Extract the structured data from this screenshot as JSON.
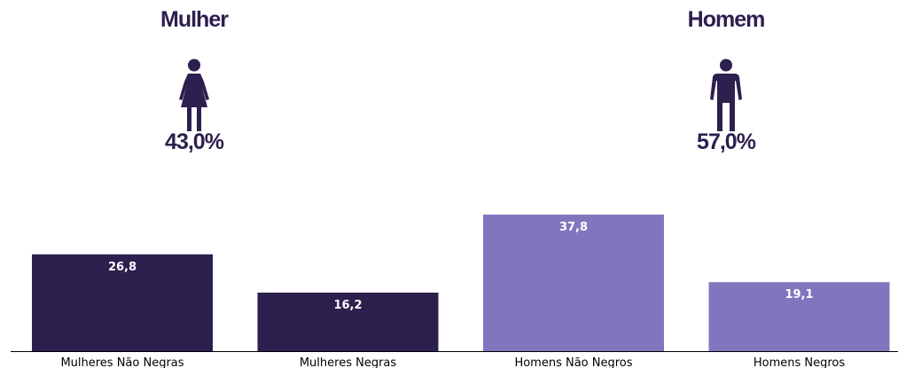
{
  "header": {
    "female": {
      "title": "Mulher",
      "percent": "43,0%",
      "icon": "female-person-icon"
    },
    "male": {
      "title": "Homem",
      "percent": "57,0%",
      "icon": "male-person-icon"
    }
  },
  "colors": {
    "title_text": "#2d1f4e",
    "female_bar": "#2d1f4e",
    "male_bar": "#8176bd",
    "bar_label": "#ffffff",
    "axis": "#000000"
  },
  "chart_data": {
    "type": "bar",
    "categories": [
      "Mulheres Não Negras",
      "Mulheres Negras",
      "Homens Não Negros",
      "Homens Negros"
    ],
    "values": [
      26.8,
      16.2,
      37.8,
      19.1
    ],
    "value_labels": [
      "26,8",
      "16,2",
      "37,8",
      "19,1"
    ],
    "bar_colors": [
      "#2d1f4e",
      "#2d1f4e",
      "#8176bd",
      "#8176bd"
    ],
    "ylim": [
      0,
      37.8
    ],
    "title": "",
    "xlabel": "",
    "ylabel": "",
    "grid": false,
    "legend": "none"
  }
}
